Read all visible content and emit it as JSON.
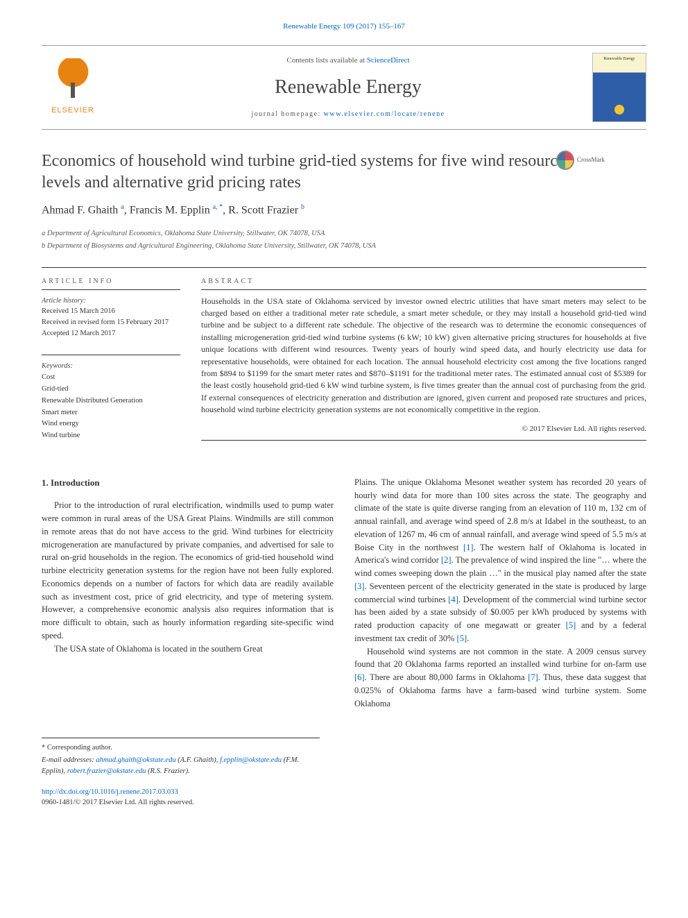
{
  "citation": "Renewable Energy 109 (2017) 155–167",
  "header": {
    "contents_prefix": "Contents lists available at ",
    "contents_link": "ScienceDirect",
    "journal": "Renewable Energy",
    "homepage_prefix": "journal homepage: ",
    "homepage_url": "www.elsevier.com/locate/renene",
    "elsevier_brand": "ELSEVIER",
    "cover_text": "Renewable Energy"
  },
  "crossmark_label": "CrossMark",
  "title": "Economics of household wind turbine grid-tied systems for five wind resource levels and alternative grid pricing rates",
  "authors_html": {
    "a1_name": "Ahmad F. Ghaith",
    "a1_sup": "a",
    "a2_name": "Francis M. Epplin",
    "a2_sup": "a, *",
    "a3_name": "R. Scott Frazier",
    "a3_sup": "b"
  },
  "affiliations": {
    "a": "a Department of Agricultural Economics, Oklahoma State University, Stillwater, OK 74078, USA",
    "b": "b Department of Biosystems and Agricultural Engineering, Oklahoma State University, Stillwater, OK 74078, USA"
  },
  "article_info": {
    "heading": "ARTICLE INFO",
    "history_label": "Article history:",
    "received": "Received 15 March 2016",
    "revised": "Received in revised form 15 February 2017",
    "accepted": "Accepted 12 March 2017",
    "keywords_label": "Keywords:",
    "keywords": [
      "Cost",
      "Grid-tied",
      "Renewable Distributed Generation",
      "Smart meter",
      "Wind energy",
      "Wind turbine"
    ]
  },
  "abstract": {
    "heading": "ABSTRACT",
    "body": "Households in the USA state of Oklahoma serviced by investor owned electric utilities that have smart meters may select to be charged based on either a traditional meter rate schedule, a smart meter schedule, or they may install a household grid-tied wind turbine and be subject to a different rate schedule. The objective of the research was to determine the economic consequences of installing microgeneration grid-tied wind turbine systems (6 kW; 10 kW) given alternative pricing structures for households at five unique locations with different wind resources. Twenty years of hourly wind speed data, and hourly electricity use data for representative households, were obtained for each location. The annual household electricity cost among the five locations ranged from $894 to $1199 for the smart meter rates and $870–$1191 for the traditional meter rates. The estimated annual cost of $5389 for the least costly household grid-tied 6 kW wind turbine system, is five times greater than the annual cost of purchasing from the grid. If external consequences of electricity generation and distribution are ignored, given current and proposed rate structures and prices, household wind turbine electricity generation systems are not economically competitive in the region.",
    "copyright": "© 2017 Elsevier Ltd. All rights reserved."
  },
  "section1": {
    "heading": "1. Introduction",
    "p1": "Prior to the introduction of rural electrification, windmills used to pump water were common in rural areas of the USA Great Plains. Windmills are still common in remote areas that do not have access to the grid. Wind turbines for electricity microgeneration are manufactured by private companies, and advertised for sale to rural on-grid households in the region. The economics of grid-tied household wind turbine electricity generation systems for the region have not been fully explored. Economics depends on a number of factors for which data are readily available such as investment cost, price of grid electricity, and type of metering system. However, a comprehensive economic analysis also requires information that is more difficult to obtain, such as hourly information regarding site-specific wind speed.",
    "p2": "The USA state of Oklahoma is located in the southern Great",
    "p2_cont": "Plains. The unique Oklahoma Mesonet weather system has recorded 20 years of hourly wind data for more than 100 sites across the state. The geography and climate of the state is quite diverse ranging from an elevation of 110 m, 132 cm of annual rainfall, and average wind speed of 2.8 m/s at Idabel in the southeast, to an elevation of 1267 m, 46 cm of annual rainfall, and average wind speed of 5.5 m/s at Boise City in the northwest ",
    "ref1": "[1]",
    "p2_cont2": ". The western half of Oklahoma is located in America's wind corridor ",
    "ref2": "[2]",
    "p2_cont3": ". The prevalence of wind inspired the line \"… where the wind comes sweeping down the plain …\" in the musical play named after the state ",
    "ref3": "[3]",
    "p2_cont4": ". Seventeen percent of the electricity generated in the state is produced by large commercial wind turbines ",
    "ref4": "[4]",
    "p2_cont5": ". Development of the commercial wind turbine sector has been aided by a state subsidy of $0.005 per kWh produced by systems with rated production capacity of one megawatt or greater ",
    "ref5a": "[5]",
    "p2_cont6": " and by a federal investment tax credit of 30% ",
    "ref5b": "[5]",
    "p2_cont7": ".",
    "p3a": "Household wind systems are not common in the state. A 2009 census survey found that 20 Oklahoma farms reported an installed wind turbine for on-farm use ",
    "ref6": "[6]",
    "p3b": ". There are about 80,000 farms in Oklahoma ",
    "ref7": "[7]",
    "p3c": ". Thus, these data suggest that 0.025% of Oklahoma farms have a farm-based wind turbine system. Some Oklahoma"
  },
  "footnotes": {
    "corr": "* Corresponding author.",
    "email_label": "E-mail addresses:",
    "e1": "ahmad.ghaith@okstate.edu",
    "e1_who": "(A.F. Ghaith),",
    "e2": "f.epplin@okstate.edu",
    "e2_who": "(F.M. Epplin),",
    "e3": "robert.frazier@okstate.edu",
    "e3_who": "(R.S. Frazier)."
  },
  "doi": {
    "url": "http://dx.doi.org/10.1016/j.renene.2017.03.033",
    "issn_line": "0960-1481/© 2017 Elsevier Ltd. All rights reserved."
  },
  "colors": {
    "link": "#0066cc",
    "text": "#333333",
    "elsevier_orange": "#e8830f",
    "rule": "#333333"
  }
}
